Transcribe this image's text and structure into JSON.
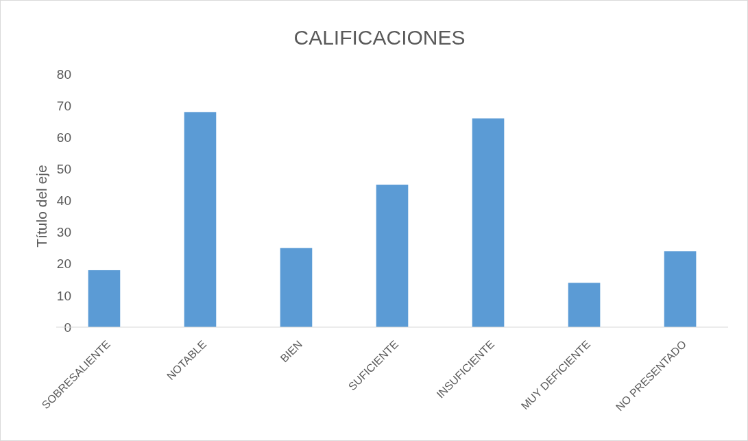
{
  "chart_data": {
    "type": "bar",
    "title": "CALIFICACIONES",
    "ylabel": "Título del eje",
    "categories": [
      "SOBRESALIENTE",
      "NOTABLE",
      "BIEN",
      "SUFICIENTE",
      "INSUFICIENTE",
      "MUY DEFICIENTE",
      "NO PRESENTADO"
    ],
    "values": [
      18,
      68,
      25,
      45,
      66,
      14,
      24
    ],
    "color": "#5b9bd5",
    "ylim": [
      0,
      80
    ],
    "yticks": [
      0,
      10,
      20,
      30,
      40,
      50,
      60,
      70,
      80
    ],
    "grid": false
  }
}
